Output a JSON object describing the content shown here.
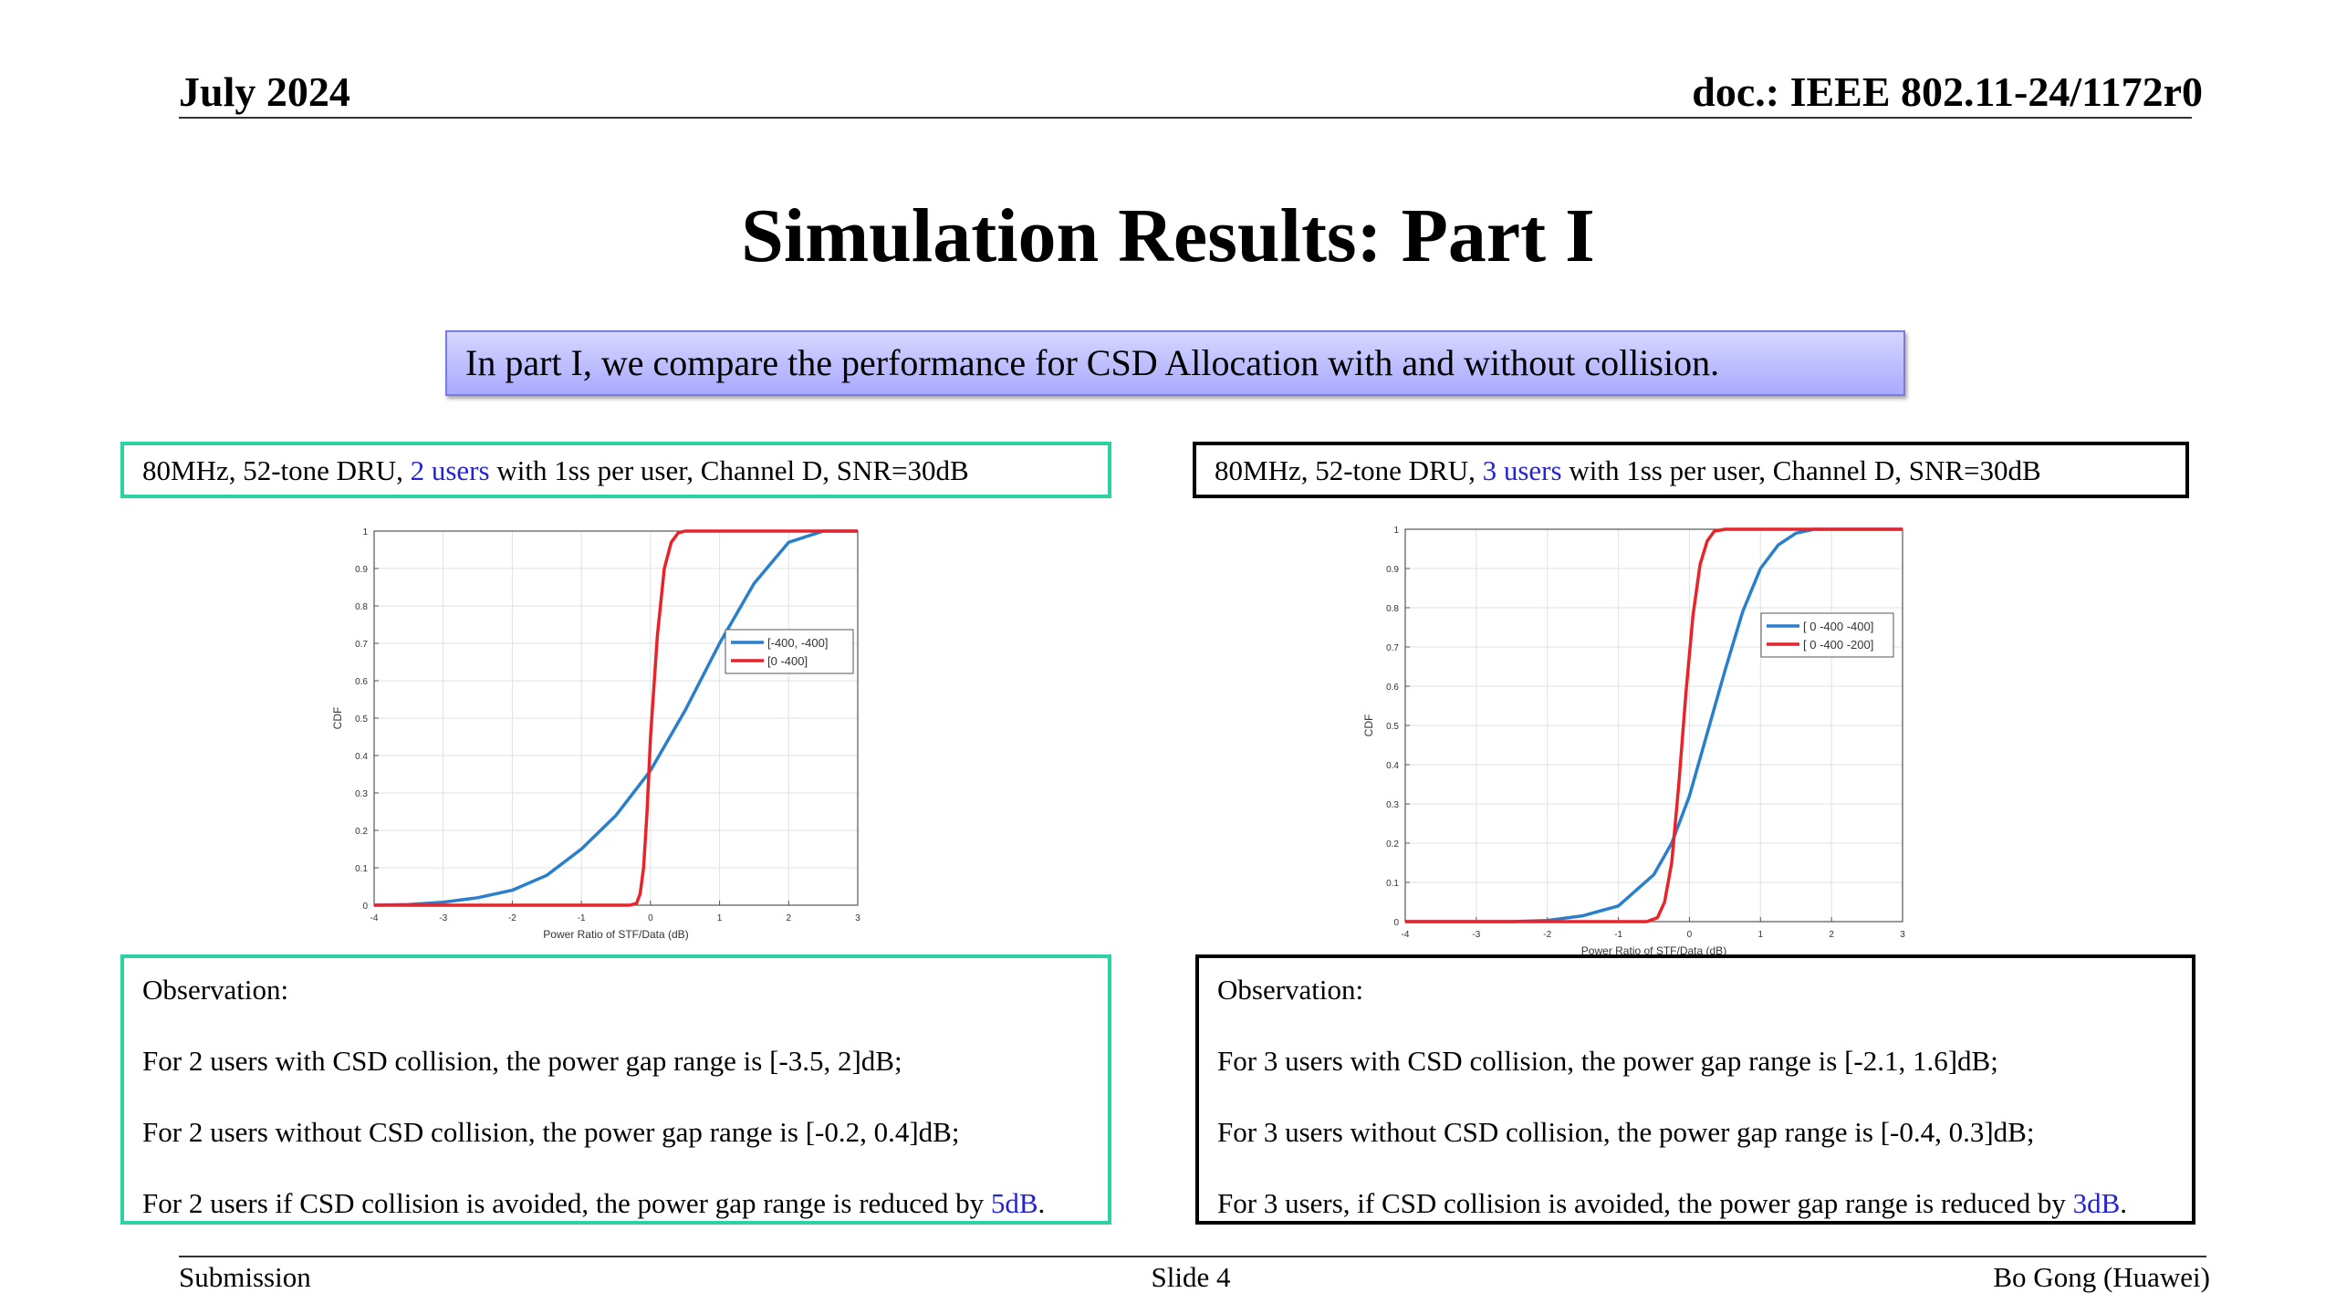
{
  "header": {
    "date": "July 2024",
    "doc": "doc.: IEEE 802.11-24/1172r0"
  },
  "title": "Simulation Results: Part I",
  "intro": "In part I, we compare the performance for CSD Allocation with and without collision.",
  "left_panel": {
    "config": {
      "pre": "80MHz, 52-tone DRU, ",
      "highlight": "2 users",
      "post": " with 1ss per user, Channel D, SNR=30dB"
    },
    "observation": {
      "heading": "Observation:",
      "lines": [
        "For 2 users with CSD collision, the power gap range is [-3.5, 2]dB;",
        "For 2 users without CSD collision, the power gap range is [-0.2, 0.4]dB;"
      ],
      "last_pre": "For 2 users if CSD collision is avoided, the power gap range is reduced by ",
      "last_highlight": "5dB",
      "last_post": "."
    }
  },
  "right_panel": {
    "config": {
      "pre": "80MHz, 52-tone DRU, ",
      "highlight": "3 users",
      "post": " with 1ss per user, Channel D, SNR=30dB"
    },
    "observation": {
      "heading": "Observation:",
      "lines": [
        "For 3 users with CSD collision, the power gap range is [-2.1, 1.6]dB;",
        "For 3 users without CSD collision, the power gap range is [-0.4, 0.3]dB;"
      ],
      "last_pre": "For 3 users, if CSD collision is avoided, the power gap range is reduced by ",
      "last_highlight": "3dB",
      "last_post": "."
    }
  },
  "footer": {
    "left": "Submission",
    "center": "Slide 4",
    "right": "Bo Gong (Huawei)"
  },
  "colors": {
    "blue_series": "#2a7fcc",
    "red_series": "#e8242a",
    "accent_teal": "#2bd3a3",
    "highlight_text": "#2424d6"
  },
  "chart_data": [
    {
      "type": "line",
      "xlabel": "Power Ratio of STF/Data (dB)",
      "ylabel": "CDF",
      "xlim": [
        -4,
        3
      ],
      "ylim": [
        0,
        1
      ],
      "xticks": [
        -4,
        -3,
        -2,
        -1,
        0,
        1,
        2,
        3
      ],
      "yticks": [
        0,
        0.1,
        0.2,
        0.3,
        0.4,
        0.5,
        0.6,
        0.7,
        0.8,
        0.9,
        1
      ],
      "grid": true,
      "legend_position": "right",
      "series": [
        {
          "name": "[-400, -400]",
          "color": "#2a7fcc",
          "x": [
            -4,
            -3.5,
            -3,
            -2.5,
            -2,
            -1.5,
            -1,
            -0.5,
            0,
            0.5,
            1,
            1.5,
            2,
            2.5,
            3
          ],
          "y": [
            0,
            0.002,
            0.008,
            0.02,
            0.04,
            0.08,
            0.15,
            0.24,
            0.36,
            0.52,
            0.7,
            0.86,
            0.97,
            1.0,
            1.0
          ]
        },
        {
          "name": "[0 -400]",
          "color": "#e8242a",
          "x": [
            -4,
            -0.3,
            -0.2,
            -0.15,
            -0.1,
            -0.05,
            0,
            0.1,
            0.2,
            0.3,
            0.4,
            0.5,
            3
          ],
          "y": [
            0,
            0,
            0.005,
            0.03,
            0.1,
            0.25,
            0.45,
            0.72,
            0.9,
            0.97,
            0.995,
            1.0,
            1.0
          ]
        }
      ]
    },
    {
      "type": "line",
      "xlabel": "Power Ratio of STF/Data (dB)",
      "ylabel": "CDF",
      "xlim": [
        -4,
        3
      ],
      "ylim": [
        0,
        1
      ],
      "xticks": [
        -4,
        -3,
        -2,
        -1,
        0,
        1,
        2,
        3
      ],
      "yticks": [
        0,
        0.1,
        0.2,
        0.3,
        0.4,
        0.5,
        0.6,
        0.7,
        0.8,
        0.9,
        1
      ],
      "grid": true,
      "legend_position": "top-right",
      "series": [
        {
          "name": "[ 0 -400 -400]",
          "color": "#2a7fcc",
          "x": [
            -4,
            -2.5,
            -2,
            -1.5,
            -1,
            -0.5,
            -0.25,
            0,
            0.25,
            0.5,
            0.75,
            1,
            1.25,
            1.5,
            1.75,
            3
          ],
          "y": [
            0,
            0,
            0.003,
            0.015,
            0.04,
            0.12,
            0.2,
            0.32,
            0.48,
            0.64,
            0.79,
            0.9,
            0.96,
            0.99,
            1.0,
            1.0
          ]
        },
        {
          "name": "[ 0 -400 -200]",
          "color": "#e8242a",
          "x": [
            -4,
            -0.6,
            -0.45,
            -0.35,
            -0.25,
            -0.15,
            -0.05,
            0.05,
            0.15,
            0.25,
            0.35,
            0.5,
            3
          ],
          "y": [
            0,
            0,
            0.01,
            0.05,
            0.15,
            0.35,
            0.58,
            0.78,
            0.91,
            0.97,
            0.995,
            1.0,
            1.0
          ]
        }
      ]
    }
  ]
}
